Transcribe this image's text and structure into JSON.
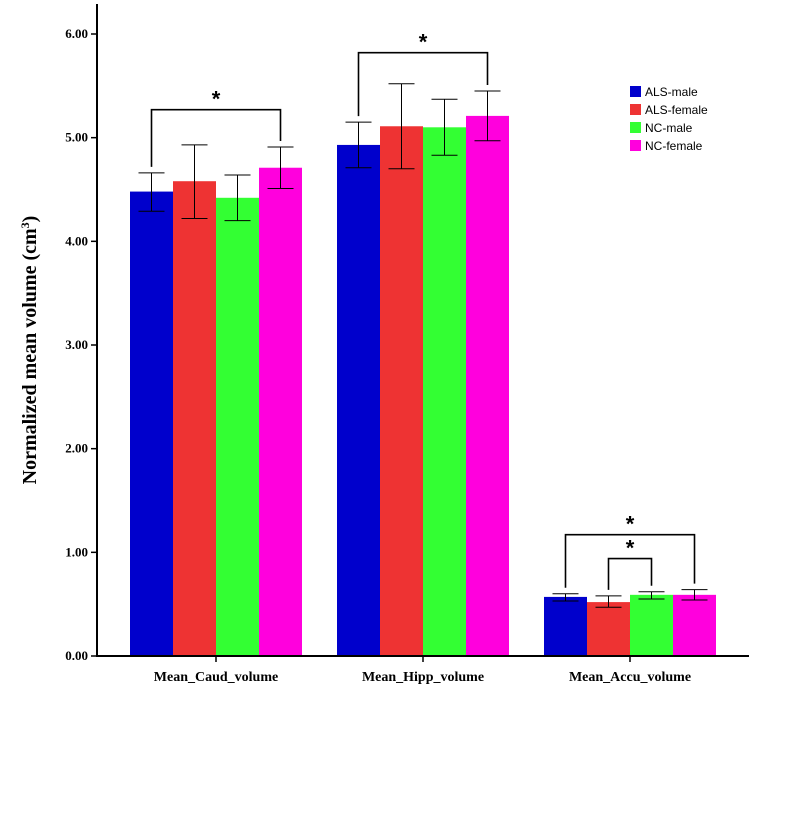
{
  "chart_data": {
    "type": "bar",
    "title": "",
    "xlabel": "",
    "ylabel": "Normalized  mean volume (cm",
    "ylabel_superscript": "3",
    "ylabel_close": ")",
    "ylim": [
      0,
      6.3
    ],
    "yticks": [
      0,
      1,
      2,
      3,
      4,
      5,
      6
    ],
    "ytick_labels": [
      "0.00",
      "1.00",
      "2.00",
      "3.00",
      "4.00",
      "5.00",
      "6.00"
    ],
    "grid": false,
    "legend_position": "top-right",
    "categories": [
      "Mean_Caud_volume",
      "Mean_Hipp_volume",
      "Mean_Accu_volume"
    ],
    "series": [
      {
        "name": "ALS-male",
        "color": "#0000CC",
        "values": [
          4.48,
          4.93,
          0.57
        ],
        "err_low": [
          4.29,
          4.71,
          0.53
        ],
        "err_high": [
          4.66,
          5.15,
          0.6
        ]
      },
      {
        "name": "ALS-female",
        "color": "#EE3333",
        "values": [
          4.58,
          5.11,
          0.52
        ],
        "err_low": [
          4.22,
          4.7,
          0.47
        ],
        "err_high": [
          4.93,
          5.52,
          0.58
        ]
      },
      {
        "name": "NC-male",
        "color": "#33FF33",
        "values": [
          4.42,
          5.1,
          0.59
        ],
        "err_low": [
          4.2,
          4.83,
          0.55
        ],
        "err_high": [
          4.64,
          5.37,
          0.62
        ]
      },
      {
        "name": "NC-female",
        "color": "#FF00DD",
        "values": [
          4.71,
          5.21,
          0.59
        ],
        "err_low": [
          4.51,
          4.97,
          0.54
        ],
        "err_high": [
          4.91,
          5.45,
          0.64
        ]
      }
    ],
    "significance": [
      {
        "category": 0,
        "from_series": 0,
        "to_series": 3,
        "level": 5.27,
        "label": "*"
      },
      {
        "category": 1,
        "from_series": 0,
        "to_series": 3,
        "level": 5.82,
        "label": "*"
      },
      {
        "category": 2,
        "from_series": 1,
        "to_series": 2,
        "level": 0.94,
        "label": "*"
      },
      {
        "category": 2,
        "from_series": 0,
        "to_series": 3,
        "level": 1.17,
        "label": "*"
      }
    ]
  }
}
